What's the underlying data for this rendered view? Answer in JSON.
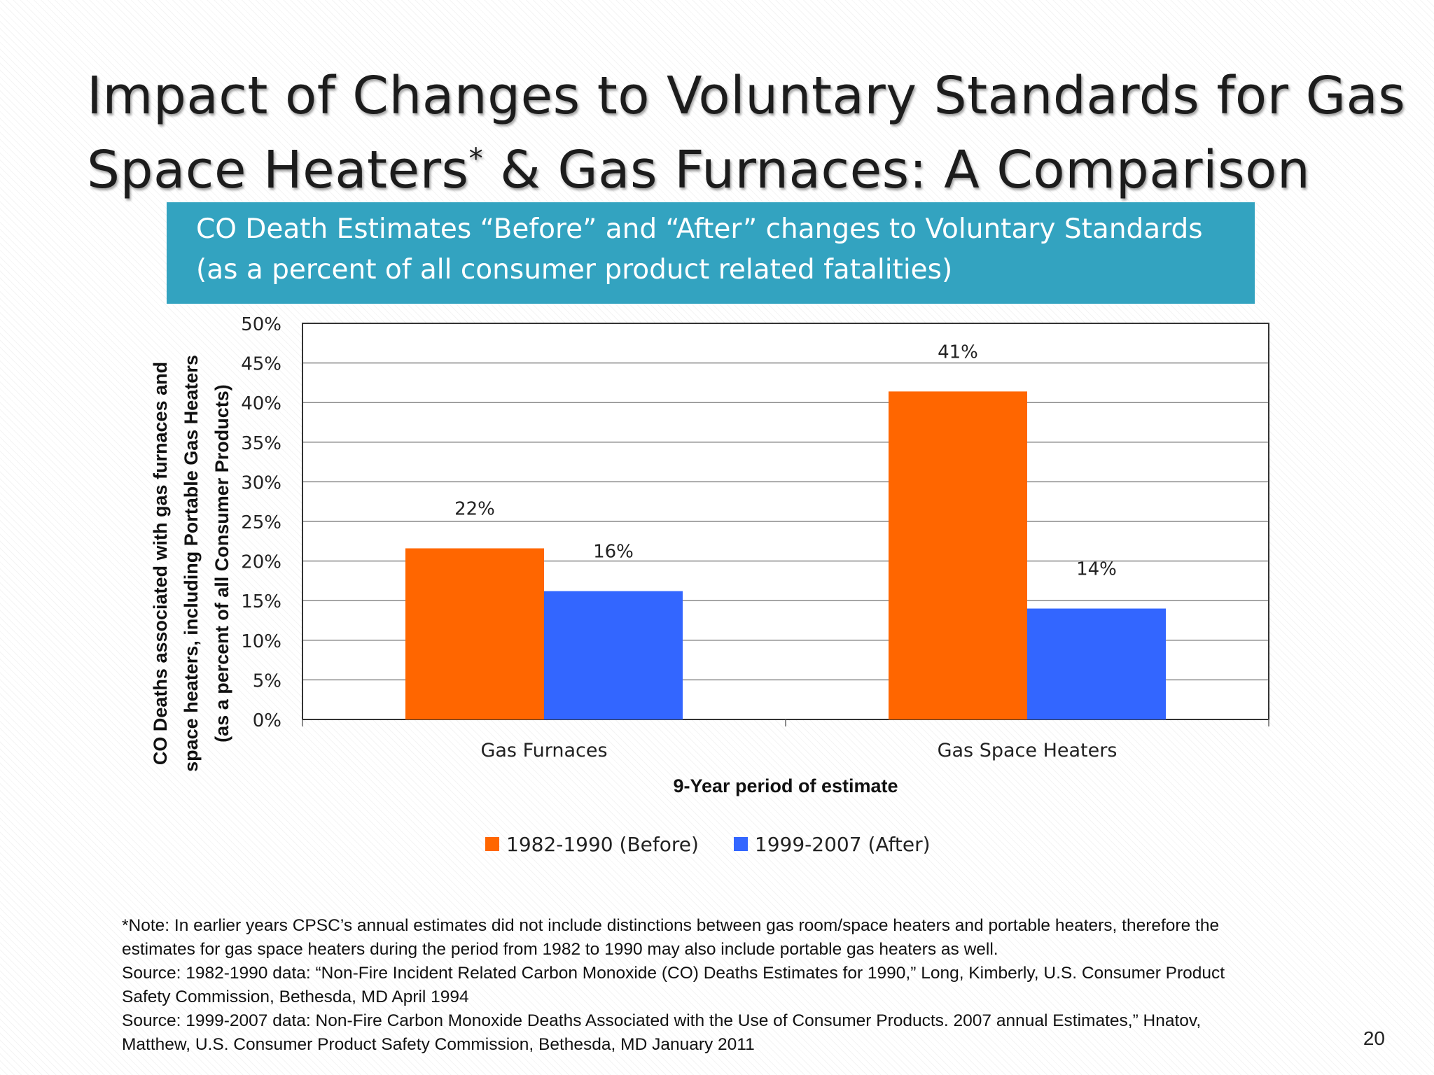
{
  "title": {
    "line1": "Impact of Changes to Voluntary Standards for Gas",
    "line2_before": "Space Heaters",
    "line2_sup": "*",
    "line2_after": " & Gas Furnaces: A Comparison"
  },
  "banner": {
    "line1": "CO Death Estimates “Before” and “After” changes to Voluntary Standards",
    "line2": "(as a percent of all consumer product related fatalities)"
  },
  "chart_data": {
    "type": "bar",
    "categories": [
      "Gas Furnaces",
      "Gas Space Heaters"
    ],
    "series": [
      {
        "name": "1982-1990 (Before)",
        "color": "#ff6600",
        "values": [
          22,
          41
        ],
        "labels": [
          "22%",
          "41%"
        ],
        "plotted": [
          21.6,
          41.4
        ]
      },
      {
        "name": "1999-2007 (After)",
        "color": "#3366ff",
        "values": [
          16,
          14
        ],
        "labels": [
          "16%",
          "14%"
        ],
        "plotted": [
          16.2,
          14.0
        ]
      }
    ],
    "xlabel": "9-Year period of estimate",
    "ylabel_lines": [
      "CO Deaths associated with gas furnaces and",
      "space heaters, including Portable Gas Heaters",
      "(as a percent of all Consumer Products)"
    ],
    "ylim": [
      0,
      50
    ],
    "yticks": [
      "0%",
      "5%",
      "10%",
      "15%",
      "20%",
      "25%",
      "30%",
      "35%",
      "40%",
      "45%",
      "50%"
    ],
    "grid": true,
    "legend_position": "bottom"
  },
  "legend": {
    "items": [
      {
        "label": "1982-1990 (Before)",
        "color": "#ff6600"
      },
      {
        "label": "1999-2007 (After)",
        "color": "#3366ff"
      }
    ]
  },
  "footnote": {
    "lines": [
      "*Note: In earlier years CPSC’s annual estimates did not include distinctions between gas room/space heaters and portable heaters, therefore the",
      "estimates  for gas space heaters during the period from 1982 to 1990 may also include portable gas heaters as well.",
      "Source: 1982-1990 data: “Non-Fire Incident Related Carbon Monoxide (CO) Deaths  Estimates for 1990,” Long, Kimberly, U.S. Consumer Product",
      "Safety Commission, Bethesda, MD April 1994",
      "Source: 1999-2007 data:  Non-Fire Carbon Monoxide Deaths Associated with the Use of Consumer Products.  2007 annual Estimates,” Hnatov,",
      "Matthew, U.S. Consumer Product Safety Commission, Bethesda, MD January 2011"
    ]
  },
  "page_number": "20"
}
